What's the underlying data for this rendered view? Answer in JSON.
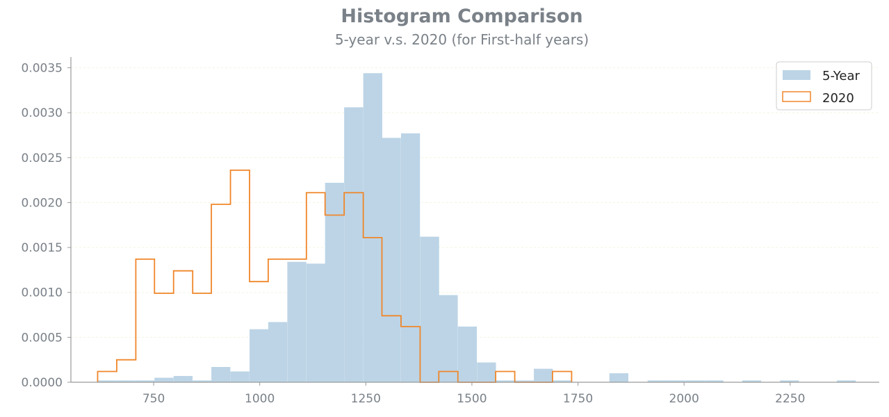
{
  "chart_data": {
    "type": "histogram",
    "title": "Histogram Comparison",
    "subtitle": "5-year v.s. 2020 (for First-half years)",
    "xlim": [
      555,
      2460
    ],
    "ylim": [
      0,
      0.00362
    ],
    "x_ticks": [
      750,
      1000,
      1250,
      1500,
      1750,
      2000,
      2250
    ],
    "y_ticks": [
      {
        "value": 0.0,
        "label": "0.0000"
      },
      {
        "value": 0.0005,
        "label": "0.0005"
      },
      {
        "value": 0.001,
        "label": "0.0010"
      },
      {
        "value": 0.0015,
        "label": "0.0015"
      },
      {
        "value": 0.002,
        "label": "0.0020"
      },
      {
        "value": 0.0025,
        "label": "0.0025"
      },
      {
        "value": 0.003,
        "label": "0.0030"
      },
      {
        "value": 0.0035,
        "label": "0.0035"
      }
    ],
    "grid": "horizontal",
    "legend_position": "top-right",
    "series": [
      {
        "name": "5-Year",
        "style": "filled",
        "color": "#bcd4e6",
        "bin_width": 44.7,
        "bins": [
          [
            618,
            2e-05
          ],
          [
            663,
            2e-05
          ],
          [
            708,
            2e-05
          ],
          [
            752,
            5e-05
          ],
          [
            797,
            7e-05
          ],
          [
            842,
            2e-05
          ],
          [
            886,
            0.00017
          ],
          [
            931,
            0.00012
          ],
          [
            976,
            0.00059
          ],
          [
            1020,
            0.00067
          ],
          [
            1065,
            0.00134
          ],
          [
            1110,
            0.00132
          ],
          [
            1154,
            0.00222
          ],
          [
            1199,
            0.00306
          ],
          [
            1244,
            0.00344
          ],
          [
            1288,
            0.00272
          ],
          [
            1333,
            0.00277
          ],
          [
            1378,
            0.00162
          ],
          [
            1422,
            0.00097
          ],
          [
            1467,
            0.00062
          ],
          [
            1512,
            0.00022
          ],
          [
            1556,
            2e-05
          ],
          [
            1601,
            2e-05
          ],
          [
            1646,
            0.00015
          ],
          [
            1690,
            2e-05
          ],
          [
            1824,
            0.0001
          ],
          [
            1914,
            2e-05
          ],
          [
            1958,
            2e-05
          ],
          [
            2003,
            2e-05
          ],
          [
            2048,
            2e-05
          ],
          [
            2137,
            2e-05
          ],
          [
            2226,
            2e-05
          ],
          [
            2360,
            2e-05
          ]
        ]
      },
      {
        "name": "2020",
        "style": "step",
        "color": "#f0862a",
        "edges": [
          618,
          663,
          708,
          752,
          797,
          842,
          886,
          931,
          976,
          1020,
          1065,
          1110,
          1154,
          1199,
          1244,
          1288,
          1333,
          1378,
          1422,
          1467,
          1512,
          1556,
          1601,
          1646,
          1690,
          1735
        ],
        "heights": [
          0.00012,
          0.00025,
          0.00137,
          0.00099,
          0.00124,
          0.00099,
          0.00198,
          0.00236,
          0.00112,
          0.00137,
          0.00137,
          0.00211,
          0.00186,
          0.00211,
          0.00161,
          0.00074,
          0.00062,
          0,
          0.00012,
          0,
          0,
          0.00012,
          0,
          0,
          0.00012
        ]
      }
    ]
  }
}
